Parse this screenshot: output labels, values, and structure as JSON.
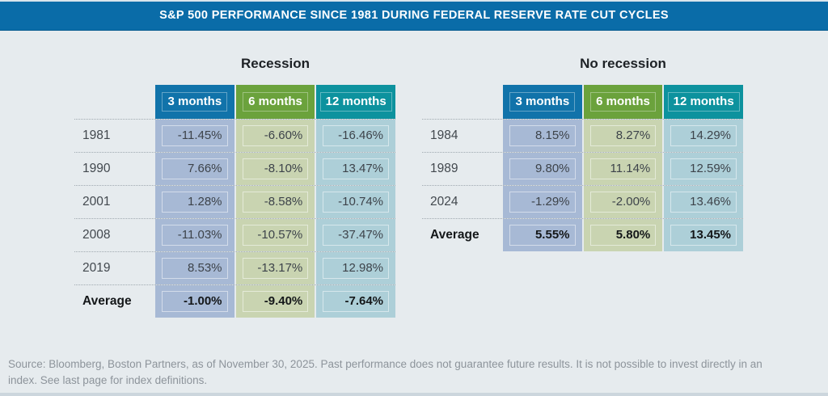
{
  "title": "S&P 500 PERFORMANCE SINCE 1981 DURING FEDERAL RESERVE RATE CUT CYCLES",
  "colors": {
    "title_bar": "#0a6ca8",
    "header_blue": "#1173aa",
    "header_green": "#6ba23c",
    "header_teal": "#0d929e",
    "cell_blue": "#a7b9d5",
    "cell_green": "#c9d4b1",
    "cell_teal": "#adcfd8",
    "page_bg": "#e6ebee",
    "footer_text": "#8d949b"
  },
  "chart_data": [
    {
      "type": "table",
      "title": "Recession",
      "columns": [
        "3 months",
        "6 months",
        "12 months"
      ],
      "rows": [
        {
          "label": "1981",
          "values": [
            "-11.45%",
            "-6.60%",
            "-16.46%"
          ],
          "bold": false
        },
        {
          "label": "1990",
          "values": [
            "7.66%",
            "-8.10%",
            "13.47%"
          ],
          "bold": false
        },
        {
          "label": "2001",
          "values": [
            "1.28%",
            "-8.58%",
            "-10.74%"
          ],
          "bold": false
        },
        {
          "label": "2008",
          "values": [
            "-11.03%",
            "-10.57%",
            "-37.47%"
          ],
          "bold": false
        },
        {
          "label": "2019",
          "values": [
            "8.53%",
            "-13.17%",
            "12.98%"
          ],
          "bold": false
        },
        {
          "label": "Average",
          "values": [
            "-1.00%",
            "-9.40%",
            "-7.64%"
          ],
          "bold": true
        }
      ]
    },
    {
      "type": "table",
      "title": "No recession",
      "columns": [
        "3 months",
        "6 months",
        "12 months"
      ],
      "rows": [
        {
          "label": "1984",
          "values": [
            "8.15%",
            "8.27%",
            "14.29%"
          ],
          "bold": false
        },
        {
          "label": "1989",
          "values": [
            "9.80%",
            "11.14%",
            "12.59%"
          ],
          "bold": false
        },
        {
          "label": "2024",
          "values": [
            "-1.29%",
            "-2.00%",
            "13.46%"
          ],
          "bold": false
        },
        {
          "label": "Average",
          "values": [
            "5.55%",
            "5.80%",
            "13.45%"
          ],
          "bold": true
        }
      ]
    }
  ],
  "footer": {
    "lines": [
      "Source: Bloomberg, Boston Partners, as of November 30, 2025. Past performance does not guarantee future results. It is not possible to invest directly in an",
      "index. See last page for index definitions."
    ]
  }
}
